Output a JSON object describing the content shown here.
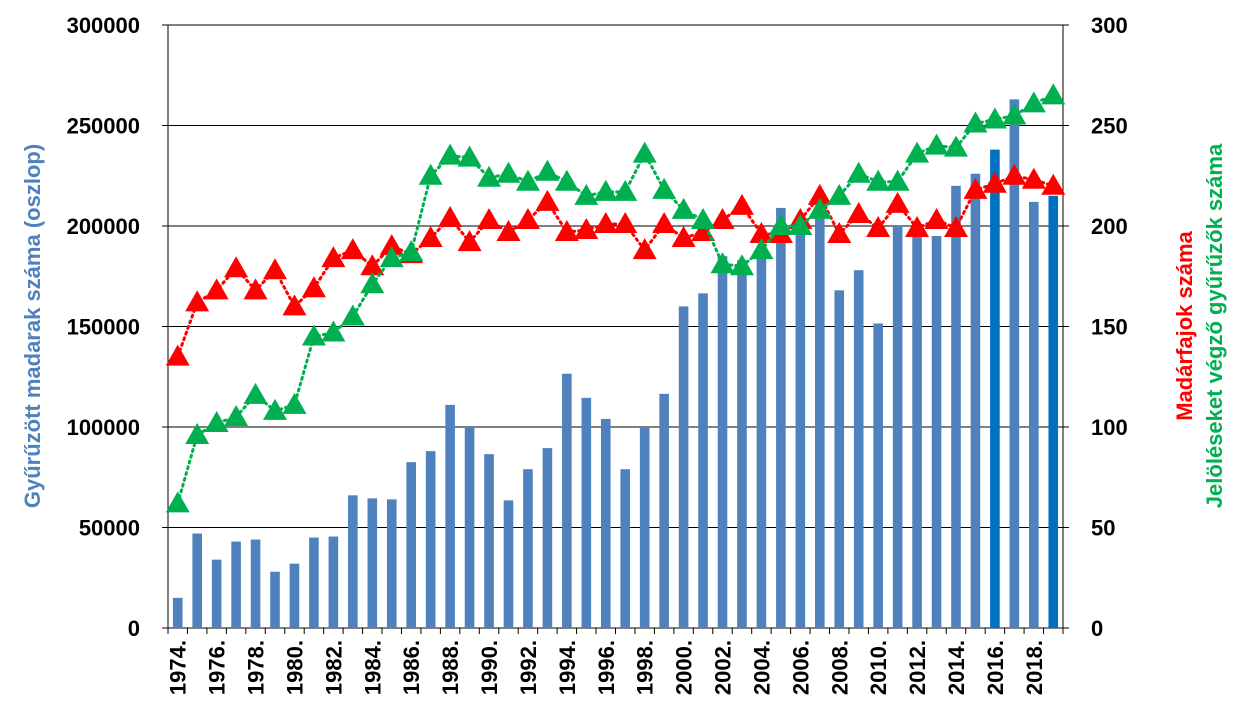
{
  "chart_data": {
    "type": "bar_line",
    "ylabel": "Gyűrűzött madarak száma (oszlop)",
    "y2labels": [
      "Madárfajok száma",
      "Jelöléseket végző gyűrűzők száma"
    ],
    "categories": [
      "1974.",
      null,
      "1976.",
      null,
      "1978.",
      null,
      "1980.",
      null,
      "1982.",
      null,
      "1984.",
      null,
      "1986.",
      null,
      "1988.",
      null,
      "1990.",
      null,
      "1992.",
      null,
      "1994.",
      null,
      "1996.",
      null,
      "1998.",
      null,
      "2000.",
      null,
      "2002.",
      null,
      "2004.",
      null,
      "2006.",
      null,
      "2008.",
      null,
      "2010.",
      null,
      "2012.",
      null,
      "2014.",
      null,
      "2016.",
      null,
      "2018.",
      null
    ],
    "series": [
      {
        "type": "bar",
        "axis": "y",
        "color": "#4f81bd",
        "colors": [
          "#4f81bd",
          "#4f81bd",
          "#4f81bd",
          "#4f81bd",
          "#4f81bd",
          "#4f81bd",
          "#4f81bd",
          "#4f81bd",
          "#4f81bd",
          "#4f81bd",
          "#4f81bd",
          "#4f81bd",
          "#4f81bd",
          "#4f81bd",
          "#4f81bd",
          "#4f81bd",
          "#4f81bd",
          "#4f81bd",
          "#4f81bd",
          "#4f81bd",
          "#4f81bd",
          "#4f81bd",
          "#4f81bd",
          "#4f81bd",
          "#4f81bd",
          "#4f81bd",
          "#4f81bd",
          "#4f81bd",
          "#4f81bd",
          "#4f81bd",
          "#4f81bd",
          "#4f81bd",
          "#4f81bd",
          "#4f81bd",
          "#4f81bd",
          "#4f81bd",
          "#4f81bd",
          "#4f81bd",
          "#4f81bd",
          "#4f81bd",
          "#4f81bd",
          "#4f81bd",
          "#0070c0",
          "#4f81bd",
          "#4f81bd",
          "#0070c0"
        ],
        "values": [
          15000,
          47000,
          34000,
          43000,
          44000,
          28000,
          32000,
          45000,
          45500,
          66000,
          64500,
          64000,
          82500,
          88000,
          111000,
          100000,
          86500,
          63500,
          79000,
          89500,
          126500,
          114500,
          104000,
          79000,
          100000,
          116500,
          160000,
          166500,
          185000,
          183000,
          188000,
          209000,
          200000,
          205000,
          168000,
          178000,
          151500,
          200000,
          196000,
          195000,
          220000,
          226000,
          238000,
          263000,
          212000,
          215000
        ]
      },
      {
        "type": "line",
        "axis": "y2",
        "color": "#ff0000",
        "values": [
          135,
          162,
          168,
          179,
          168,
          178,
          160,
          169,
          184,
          188,
          180,
          190,
          186,
          194,
          204,
          192,
          203,
          197,
          203,
          212,
          197,
          198,
          201,
          201,
          188,
          201,
          194,
          197,
          203,
          210,
          196,
          196,
          203,
          215,
          196,
          206,
          199,
          211,
          199,
          203,
          199,
          218,
          221,
          225,
          223,
          220
        ]
      },
      {
        "type": "line",
        "axis": "y2",
        "color": "#00b050",
        "values": [
          62,
          96,
          102,
          105,
          116,
          108,
          111,
          145,
          147,
          155,
          171,
          184,
          187,
          225,
          235,
          234,
          224,
          226,
          222,
          227,
          222,
          215,
          217,
          217,
          236,
          218,
          208,
          203,
          181,
          180,
          188,
          200,
          200,
          208,
          215,
          226,
          222,
          222,
          236,
          240,
          239,
          251,
          253,
          255,
          261,
          265
        ]
      }
    ],
    "ylim": [
      0,
      300000
    ],
    "yticks": [
      0,
      50000,
      100000,
      150000,
      200000,
      250000,
      300000
    ],
    "y2lim": [
      0,
      300
    ],
    "y2ticks": [
      0,
      50,
      100,
      150,
      200,
      250,
      300
    ],
    "grid": true
  }
}
